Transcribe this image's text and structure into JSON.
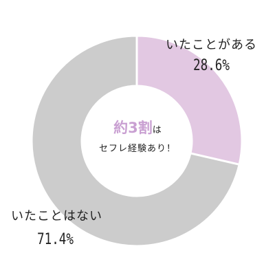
{
  "chart_data": {
    "type": "pie",
    "style": "donut",
    "categories": [
      "いたことがある",
      "いたことはない"
    ],
    "values": [
      28.6,
      71.4
    ],
    "value_labels": [
      "28.6%",
      "71.4%"
    ],
    "colors": [
      "#e2c8e2",
      "#cccccc"
    ],
    "legend": "none",
    "center_text": {
      "highlight": "約3割",
      "highlight_color": "#c9a0d2",
      "suffix": "は",
      "line2": "セフレ経験あり！"
    }
  }
}
